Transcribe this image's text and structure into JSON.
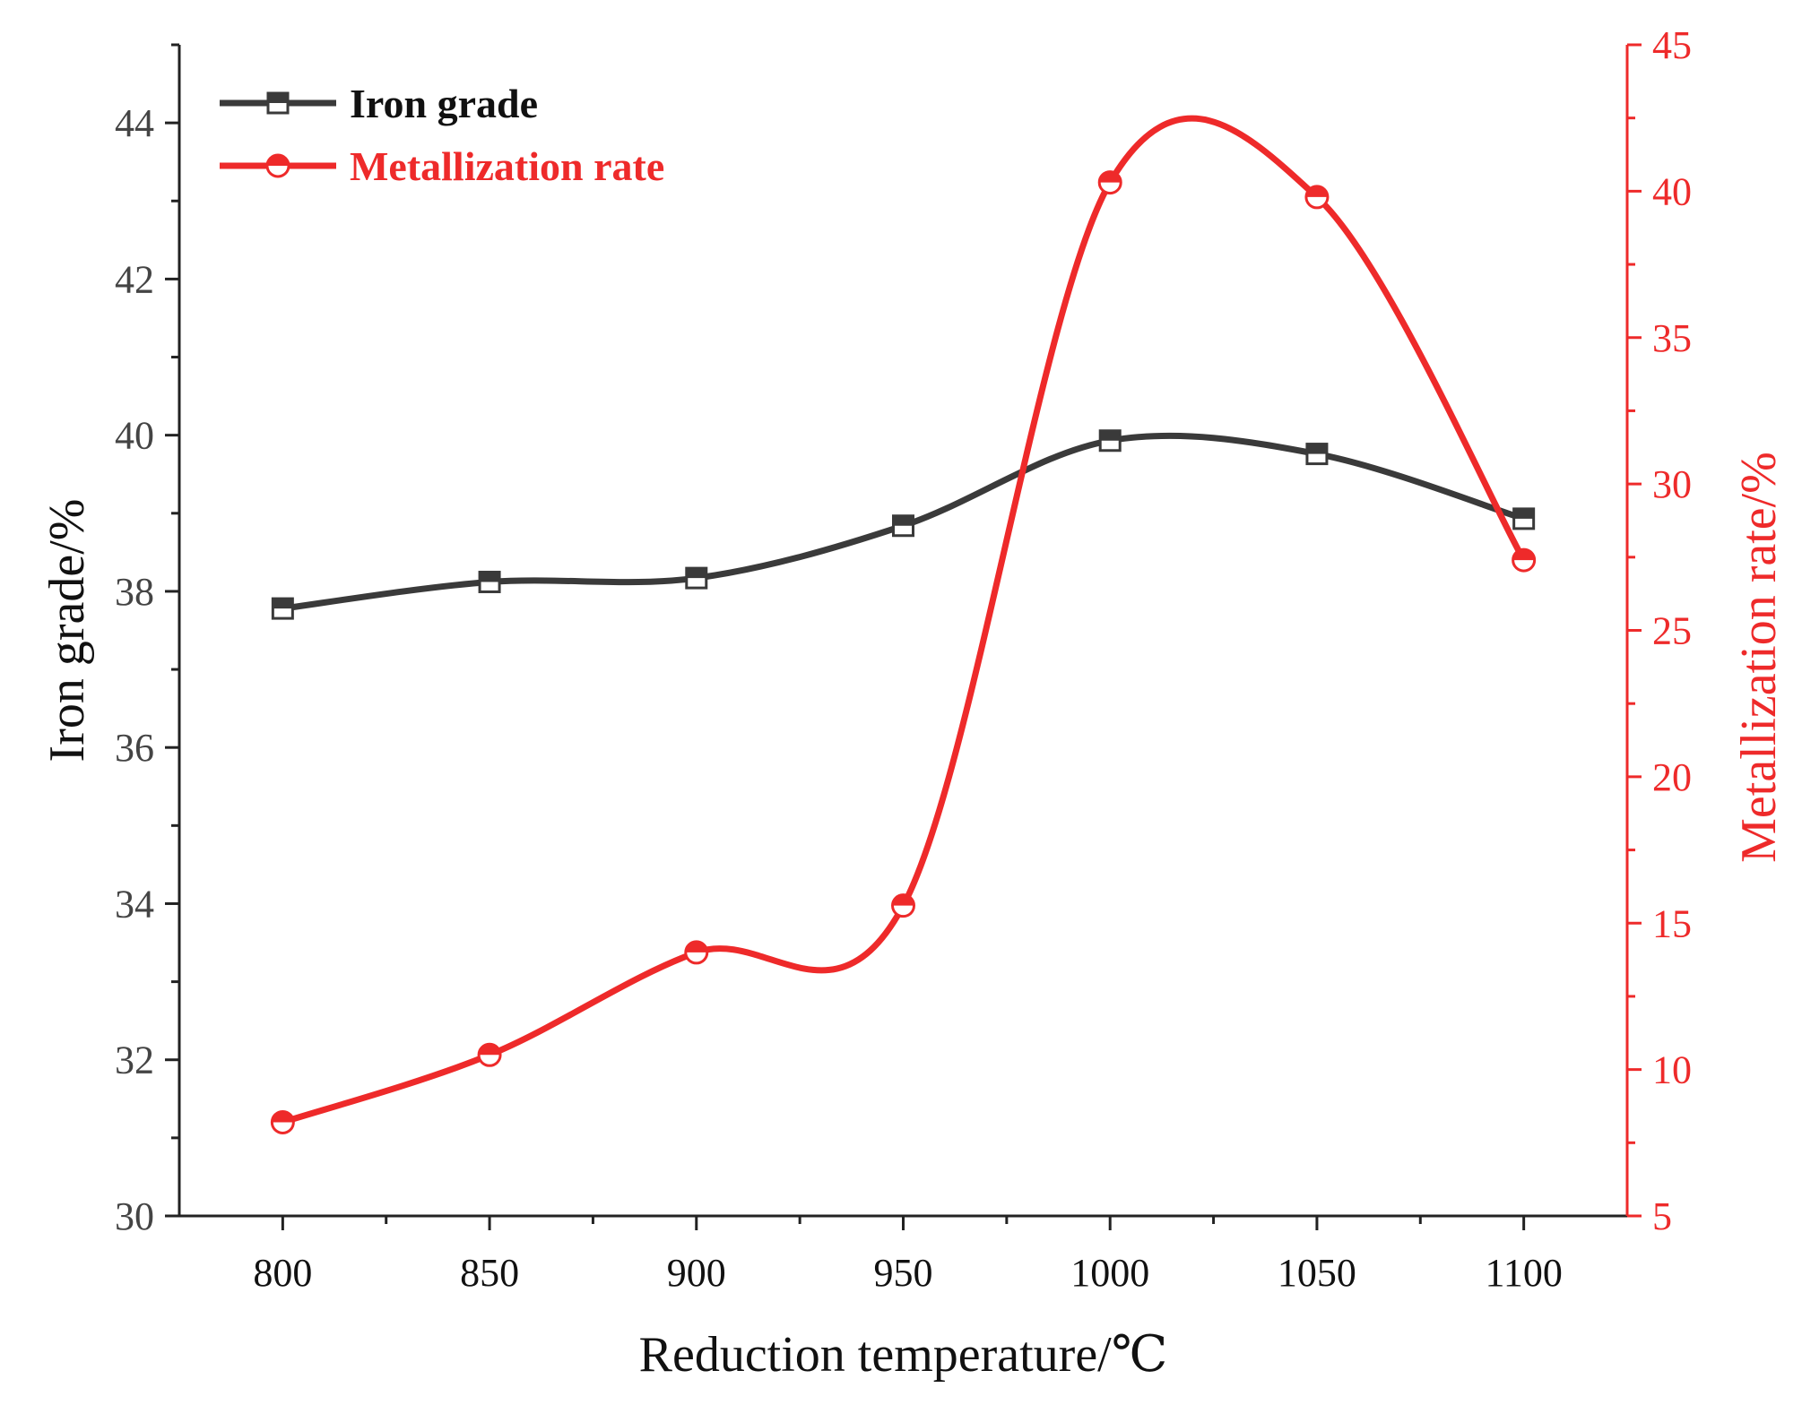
{
  "chart_data": {
    "type": "line",
    "title": "",
    "xlabel": "Reduction temperature/℃",
    "ylabel_left": "Iron grade/%",
    "ylabel_right": "Metallization rate/%",
    "x": [
      800,
      850,
      900,
      950,
      1000,
      1050,
      1100
    ],
    "x_ticks": [
      800,
      850,
      900,
      950,
      1000,
      1050,
      1100
    ],
    "xlim": [
      775,
      1125
    ],
    "ylim_left": [
      30,
      45
    ],
    "yticks_left": [
      30,
      32,
      34,
      36,
      38,
      40,
      42,
      44
    ],
    "ylim_right": [
      5,
      45
    ],
    "yticks_right": [
      5,
      10,
      15,
      20,
      25,
      30,
      35,
      40,
      45
    ],
    "grid": false,
    "legend_position": "top-left",
    "series": [
      {
        "name": "Iron grade",
        "axis": "left",
        "color": "#3a3a3a",
        "marker": "square",
        "values": [
          37.78,
          38.12,
          38.17,
          38.84,
          39.93,
          39.76,
          38.93
        ]
      },
      {
        "name": "Metallization rate",
        "axis": "right",
        "color": "#ee2a2a",
        "marker": "circle",
        "values": [
          8.2,
          10.5,
          14.0,
          15.6,
          40.3,
          39.8,
          27.4
        ]
      }
    ]
  }
}
